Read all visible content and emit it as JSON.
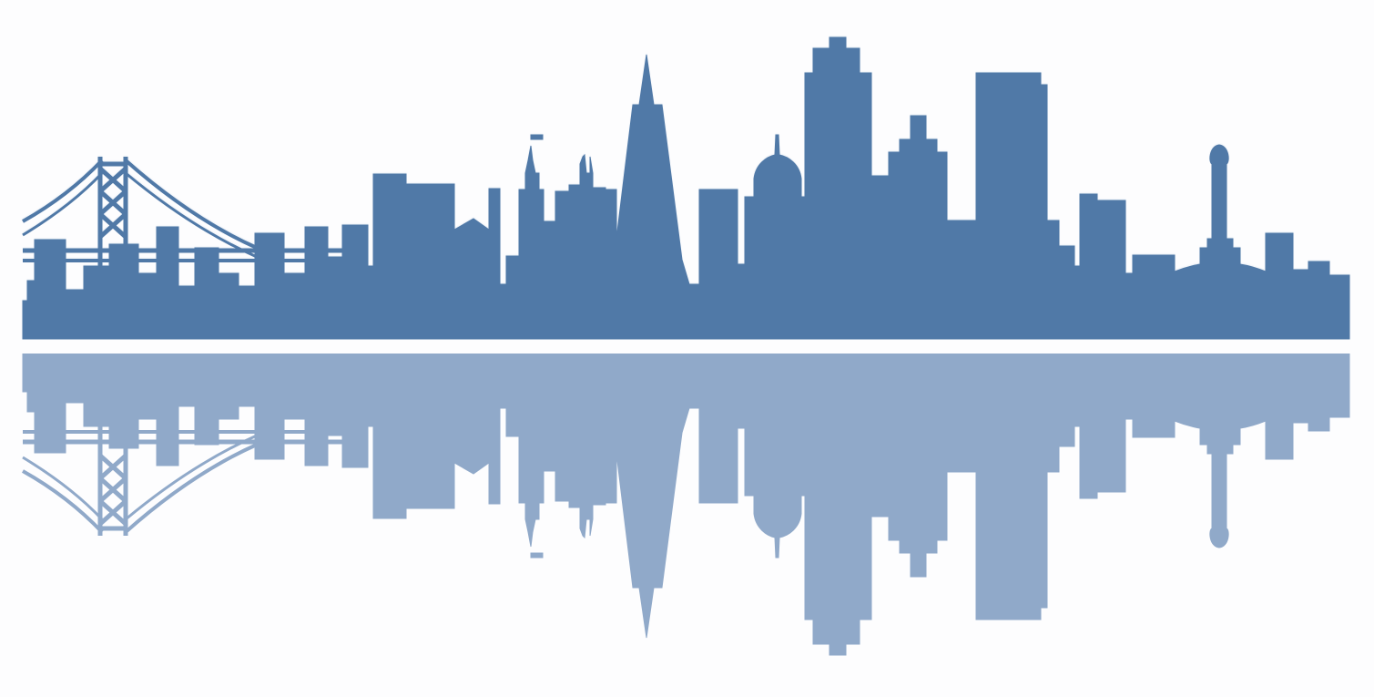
{
  "scene": {
    "subject": "city-skyline-with-bridge-and-water-reflection",
    "colors": {
      "background": "#fdfdfe",
      "skyline": "#5079a7",
      "glow": "#ffffff",
      "reflection_top": "#90a9c9",
      "reflection_bottom": "#f7f9fc"
    }
  }
}
